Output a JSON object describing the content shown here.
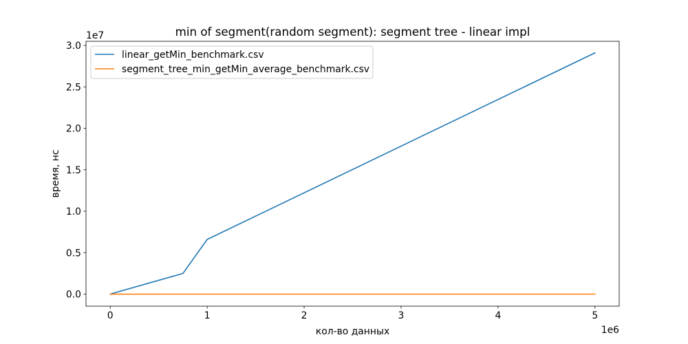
{
  "chart_data": {
    "type": "line",
    "title": "min of segment(random segment): segment tree - linear impl",
    "xlabel": "кол-во данных",
    "ylabel": "время, нс",
    "x_offset_label": "1e6",
    "y_offset_label": "1e7",
    "x_multiplier": 1000000,
    "y_multiplier": 10000000,
    "xlim": [
      -250000,
      5250000
    ],
    "ylim": [
      -1450000,
      30500000
    ],
    "x_ticks": [
      0,
      1000000,
      2000000,
      3000000,
      4000000,
      5000000
    ],
    "x_tick_labels": [
      "0",
      "1",
      "2",
      "3",
      "4",
      "5"
    ],
    "y_ticks": [
      0,
      5000000,
      10000000,
      15000000,
      20000000,
      25000000,
      30000000
    ],
    "y_tick_labels": [
      "0.0",
      "0.5",
      "1.0",
      "1.5",
      "2.0",
      "2.5",
      "3.0"
    ],
    "grid": false,
    "legend_position": "top-left",
    "series": [
      {
        "name": "linear_getMin_benchmark.csv",
        "color": "#1f77b4",
        "x": [
          1000,
          750000,
          1000000,
          5000000
        ],
        "y": [
          10000,
          2500000,
          6600000,
          29100000
        ]
      },
      {
        "name": "segment_tree_min_getMin_average_benchmark.csv",
        "color": "#ff7f0e",
        "x": [
          1000,
          750000,
          1000000,
          5000000
        ],
        "y": [
          1000,
          1500,
          1600,
          2000
        ]
      }
    ]
  }
}
